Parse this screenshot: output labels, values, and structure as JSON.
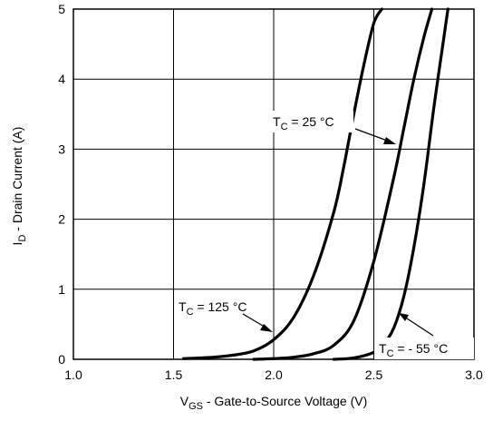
{
  "chart_data": {
    "type": "line",
    "xlabel": {
      "main": "V",
      "sub": "GS",
      "rest": " - Gate-to-Source Voltage (V)"
    },
    "ylabel": {
      "main": "I",
      "sub": "D",
      "rest": " - Drain Current (A)"
    },
    "xlim": [
      1.0,
      3.0
    ],
    "ylim": [
      0,
      5
    ],
    "xticks": [
      "1.0",
      "1.5",
      "2.0",
      "2.5",
      "3.0"
    ],
    "yticks": [
      "0",
      "1",
      "2",
      "3",
      "4",
      "5"
    ],
    "grid": true,
    "series": [
      {
        "name": "TC = 125 °C",
        "x": [
          1.55,
          1.7,
          1.8,
          1.9,
          2.0,
          2.1,
          2.2,
          2.3,
          2.35,
          2.4,
          2.45,
          2.5,
          2.54
        ],
        "y": [
          0.01,
          0.03,
          0.06,
          0.12,
          0.28,
          0.6,
          1.2,
          2.1,
          2.75,
          3.5,
          4.2,
          4.8,
          5.0
        ]
      },
      {
        "name": "TC = 25 °C",
        "x": [
          1.9,
          2.0,
          2.1,
          2.2,
          2.3,
          2.4,
          2.5,
          2.6,
          2.65,
          2.7,
          2.75,
          2.79
        ],
        "y": [
          0.0,
          0.01,
          0.03,
          0.08,
          0.2,
          0.55,
          1.4,
          2.6,
          3.3,
          4.0,
          4.6,
          5.0
        ]
      },
      {
        "name": "TC = - 55 °C",
        "x": [
          2.3,
          2.4,
          2.5,
          2.55,
          2.6,
          2.65,
          2.7,
          2.75,
          2.8,
          2.85,
          2.87
        ],
        "y": [
          0.0,
          0.02,
          0.1,
          0.22,
          0.45,
          0.9,
          1.6,
          2.5,
          3.6,
          4.6,
          5.0
        ]
      }
    ],
    "annotations": [
      {
        "main": "T",
        "sub": "C",
        "rest": " = 25 °C"
      },
      {
        "main": "T",
        "sub": "C",
        "rest": " = 125 °C"
      },
      {
        "main": "T",
        "sub": "C",
        "rest": " = - 55 °C"
      }
    ]
  }
}
